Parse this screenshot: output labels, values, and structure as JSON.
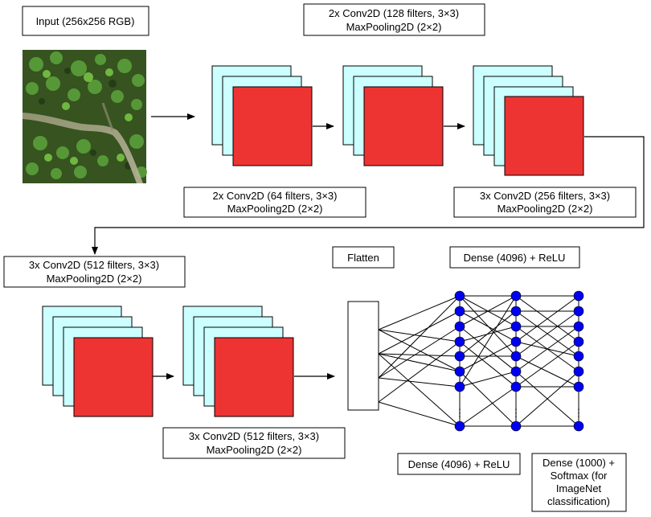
{
  "labels": {
    "input": "Input (256x256 RGB)",
    "block1_line1": "2x Conv2D (64 filters, 3×3)",
    "block1_line2": "MaxPooling2D (2×2)",
    "block2_line1": "2x Conv2D (128 filters, 3×3)",
    "block2_line2": "MaxPooling2D (2×2)",
    "block3_line1": "3x Conv2D (256 filters, 3×3)",
    "block3_line2": "MaxPooling2D (2×2)",
    "block4_line1": "3x Conv2D (512 filters, 3×3)",
    "block4_line2": "MaxPooling2D (2×2)",
    "block5_line1": "3x Conv2D (512 filters, 3×3)",
    "block5_line2": "MaxPooling2D (2×2)",
    "flatten": "Flatten",
    "dense1": "Dense (4096) + ReLU",
    "dense2": "Dense (4096) + ReLU",
    "dense3_line1": "Dense (1000) +",
    "dense3_line2": "Softmax (for",
    "dense3_line3": "ImageNet",
    "dense3_line4": "classification)",
    "ellipsis": "⋮"
  },
  "colors": {
    "feature_map_back": "#ccffff",
    "feature_map_front": "#ee3333",
    "neuron": "#0000ee",
    "stroke": "#000000"
  },
  "icons": {
    "input_image": "aerial-forest-image"
  }
}
